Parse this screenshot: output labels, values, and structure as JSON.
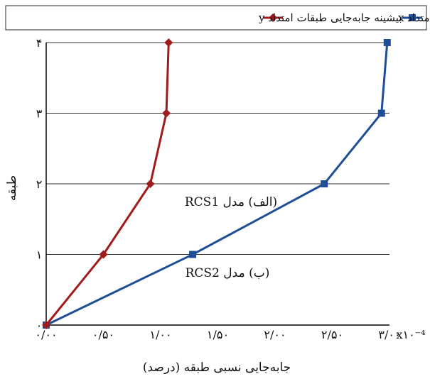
{
  "chart_data": {
    "type": "line",
    "xlabel": "جابه‌جایی نسبی طبقه (درصد)",
    "ylabel": "طبقه",
    "x_multiplier_label": "x۱۰⁻⁴",
    "xlim": [
      0,
      3.0
    ],
    "ylim": [
      0,
      4
    ],
    "x_ticks": [
      0,
      0.5,
      1.0,
      1.5,
      2.0,
      2.5,
      3.0
    ],
    "x_tick_labels": [
      "۰/۰۰",
      "۰/۵۰",
      "۱/۰۰",
      "۱/۵۰",
      "۲/۰۰",
      "۲/۵۰",
      "۳/۰۰"
    ],
    "y_ticks": [
      0,
      1,
      2,
      3,
      4
    ],
    "y_tick_labels": [
      "۰",
      "۱",
      "۲",
      "۳",
      "۴"
    ],
    "grid": "horizontal",
    "legend_position": "top",
    "series": [
      {
        "name": "بیشینه جابه‌جایی طبقات امتداد x",
        "color": "#1f4e96",
        "marker": "square",
        "points": [
          [
            0.0,
            0
          ],
          [
            1.28,
            1
          ],
          [
            2.43,
            2
          ],
          [
            2.93,
            3
          ],
          [
            2.98,
            4
          ]
        ]
      },
      {
        "name": "بیشینه جابه‌جایی طبقات امتداد y",
        "color": "#a01c1c",
        "marker": "diamond",
        "points": [
          [
            0.0,
            0
          ],
          [
            0.5,
            1
          ],
          [
            0.91,
            2
          ],
          [
            1.05,
            3
          ],
          [
            1.07,
            4
          ]
        ]
      }
    ],
    "annotations": [
      {
        "text": "(الف) مدل RCS1",
        "x": 2.0,
        "y": 1.75
      },
      {
        "text": "(ب) مدل RCS2",
        "x": 1.75,
        "y": 0.75
      }
    ]
  }
}
